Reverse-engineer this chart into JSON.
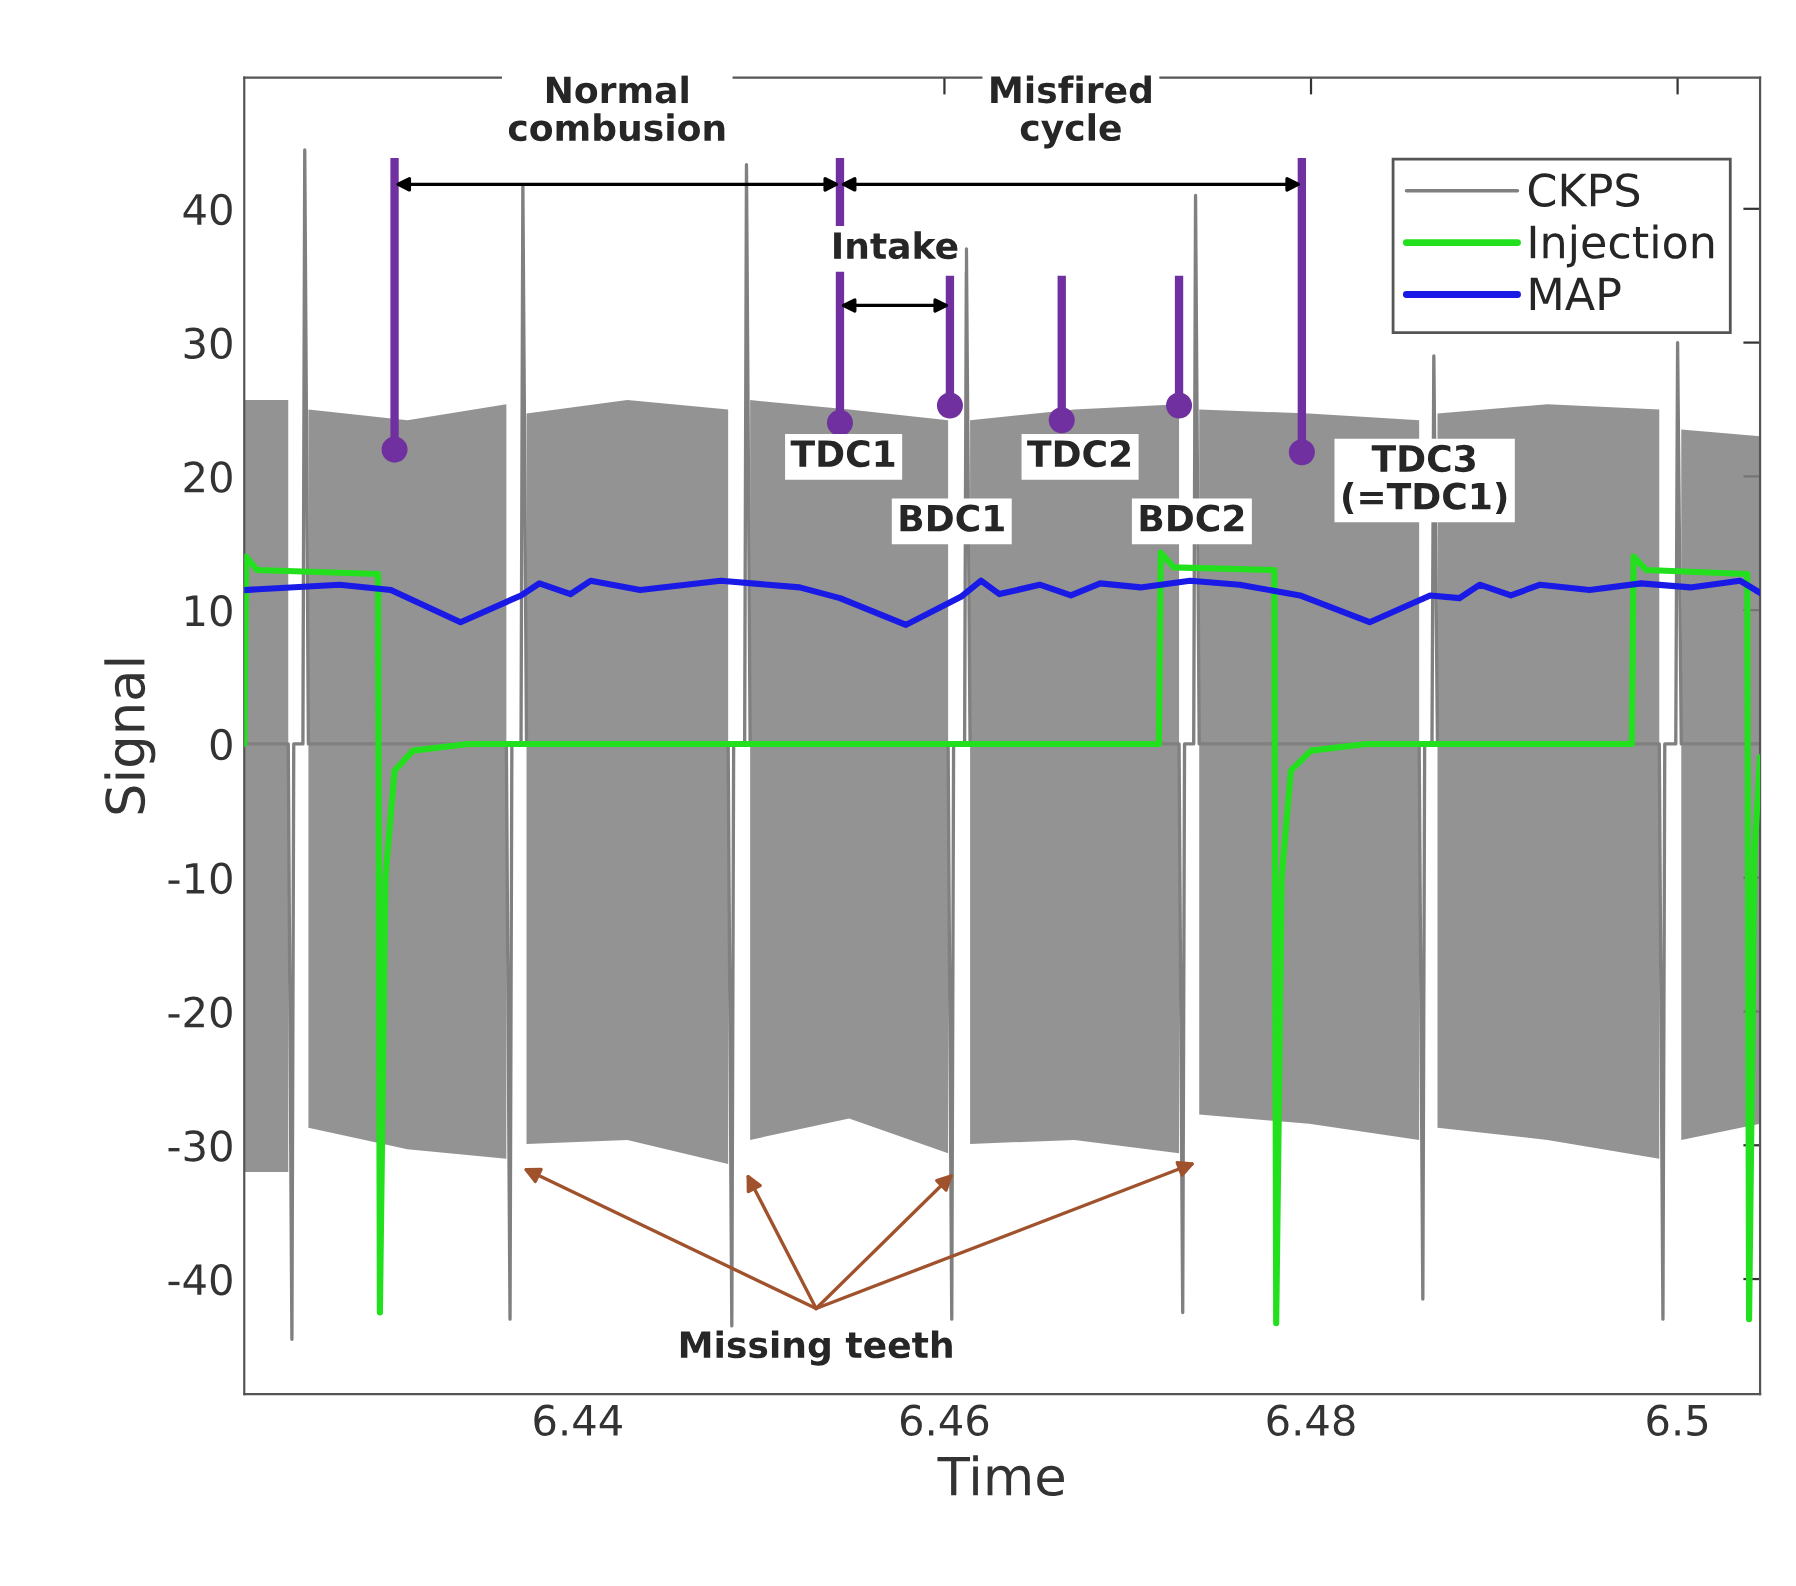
{
  "chart_data": {
    "type": "line",
    "xlabel": "Time",
    "ylabel": "Signal",
    "xlim": [
      6.4218,
      6.5045
    ],
    "ylim": [
      -48.6,
      49.8
    ],
    "xticks": [
      6.44,
      6.46,
      6.48,
      6.5
    ],
    "yticks": [
      -40,
      -30,
      -20,
      -10,
      0,
      10,
      20,
      30,
      40
    ],
    "grid": false,
    "legend": "top right",
    "series": [
      {
        "name": "CKPS",
        "color": "#808080",
        "x": [
          6.4218,
          6.4242,
          6.4244,
          6.4245,
          6.425,
          6.4251,
          6.4253,
          6.4307,
          6.4361,
          6.4363,
          6.4364,
          6.4369,
          6.437,
          6.4372,
          6.4427,
          6.4482,
          6.4484,
          6.4485,
          6.4491,
          6.4492,
          6.4494,
          6.4548,
          6.4602,
          6.4604,
          6.4605,
          6.4611,
          6.4612,
          6.4614,
          6.4671,
          6.4728,
          6.473,
          6.4731,
          6.4736,
          6.4737,
          6.4739,
          6.4799,
          6.4859,
          6.4861,
          6.4862,
          6.4866,
          6.4867,
          6.4869,
          6.4929,
          6.499,
          6.4992,
          6.4993,
          6.4999,
          6.5,
          6.5002,
          6.5045
        ],
        "values": [
          0,
          0,
          -44.5,
          0,
          0,
          44.4,
          0,
          0,
          0,
          -43,
          0,
          0,
          41.8,
          0,
          0,
          0,
          -43.5,
          0,
          0,
          43.3,
          0,
          0,
          0,
          -43,
          0,
          0,
          37,
          0,
          0,
          0,
          -42.5,
          0,
          0,
          41,
          0,
          0,
          0,
          -41.5,
          0,
          0,
          29,
          0,
          0,
          0,
          -43,
          0,
          0,
          30,
          0,
          0
        ],
        "lower": [
          -32,
          -32,
          null,
          null,
          null,
          null,
          -28.7,
          -30.3,
          -31,
          null,
          null,
          null,
          null,
          -29.9,
          -29.6,
          -31.4,
          null,
          null,
          null,
          null,
          -29.6,
          -28,
          -30.6,
          null,
          null,
          null,
          null,
          -29.9,
          -29.6,
          -30.6,
          null,
          null,
          null,
          null,
          -27.7,
          -28.4,
          -29.6,
          null,
          null,
          null,
          null,
          -28.7,
          -29.6,
          -31,
          null,
          null,
          null,
          null,
          -29.6,
          -28.4
        ],
        "upper": [
          25.7,
          25.7,
          null,
          null,
          null,
          null,
          25,
          24.2,
          25.4,
          null,
          null,
          null,
          null,
          24.7,
          25.7,
          25,
          null,
          null,
          null,
          null,
          25.7,
          25,
          24.2,
          null,
          null,
          null,
          null,
          24.2,
          25,
          25.4,
          null,
          null,
          null,
          null,
          25,
          24.7,
          24.2,
          null,
          null,
          null,
          null,
          24.7,
          25.4,
          25,
          null,
          null,
          null,
          null,
          23.5,
          23
        ]
      },
      {
        "name": "Injection",
        "color": "#22e01e",
        "x": [
          6.4218,
          6.4219,
          6.4225,
          6.4291,
          6.4292,
          6.4295,
          6.43,
          6.431,
          6.434,
          6.4717,
          6.4718,
          6.4725,
          6.478,
          6.4781,
          6.4784,
          6.4789,
          6.48,
          6.483,
          6.4975,
          6.4976,
          6.4983,
          6.5038,
          6.5039,
          6.5042,
          6.5045
        ],
        "values": [
          0,
          14,
          13,
          12.7,
          -42.5,
          -10,
          -2,
          -0.5,
          0,
          0,
          14.3,
          13.2,
          13,
          -43.3,
          -10,
          -2,
          -0.5,
          0,
          0,
          14,
          13,
          12.7,
          -43,
          -8,
          -1
        ]
      },
      {
        "name": "MAP",
        "color": "#1a1ae6",
        "x": [
          6.4218,
          6.427,
          6.4298,
          6.4336,
          6.4369,
          6.4379,
          6.4396,
          6.4407,
          6.4434,
          6.4478,
          6.4521,
          6.4543,
          6.4579,
          6.4609,
          6.462,
          6.463,
          6.4652,
          6.4669,
          6.4685,
          6.4707,
          6.4734,
          6.4761,
          6.4794,
          6.4832,
          6.4865,
          6.4881,
          6.4892,
          6.4909,
          6.4925,
          6.4952,
          6.498,
          6.5007,
          6.5034,
          6.5045
        ],
        "values": [
          11.5,
          11.9,
          11.5,
          9.1,
          11.1,
          12,
          11.2,
          12.2,
          11.5,
          12.2,
          11.7,
          10.9,
          8.9,
          11,
          12.2,
          11.2,
          11.9,
          11.1,
          12,
          11.7,
          12.2,
          11.9,
          11.1,
          9.1,
          11.1,
          10.9,
          11.9,
          11.1,
          11.9,
          11.5,
          12,
          11.7,
          12.2,
          11.3
        ]
      },
      {
        "type": "scatter",
        "color": "#7030a0",
        "marker": "circle",
        "x": [
          6.43,
          6.4543,
          6.4603,
          6.4664,
          6.4728,
          6.4795
        ],
        "values": [
          22,
          24,
          25.3,
          24.2,
          25.3,
          21.8
        ],
        "errors": [
          [
            22,
            43.8
          ],
          [
            24,
            43.8
          ],
          [
            25.3,
            35
          ],
          [
            24.2,
            35
          ],
          [
            25.3,
            35
          ],
          [
            21.8,
            43.8
          ]
        ]
      }
    ],
    "annotations": [
      "Normal\ncombusion",
      "Misfired\ncycle",
      "Intake",
      "TDC1",
      "BDC1",
      "TDC2",
      "BDC2",
      "TDC3\n(=TDC1)",
      {
        "text": "Missing teeth",
        "x": 6.4605,
        "y": -32.1
      }
    ]
  }
}
